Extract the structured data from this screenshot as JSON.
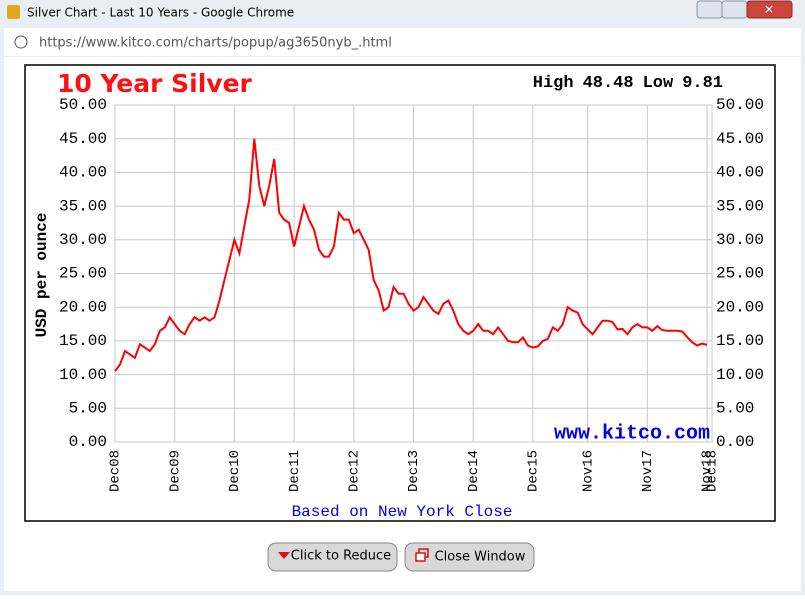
{
  "window": {
    "title": "Silver Chart - Last 10 Years - Google Chrome",
    "url": "https://www.kitco.com/charts/popup/ag3650nyb_.html"
  },
  "buttons": [
    "Click to Reduce",
    "Close Window"
  ],
  "chart_data": {
    "type": "line",
    "title": "10 Year Silver",
    "high_label": "High",
    "high": 48.48,
    "low_label": "Low",
    "low": 9.81,
    "ylabel": "USD per ounce",
    "watermark": "www.kitco.com",
    "footnote": "Based on New York Close",
    "grid": true,
    "color": "#ff0000",
    "xlim": [
      "2008-12",
      "2018-12"
    ],
    "xticks": [
      {
        "value": "2008-12",
        "label": "Dec08"
      },
      {
        "value": "2009-12",
        "label": "Dec09"
      },
      {
        "value": "2010-12",
        "label": "Dec10"
      },
      {
        "value": "2011-12",
        "label": "Dec11"
      },
      {
        "value": "2012-12",
        "label": "Dec12"
      },
      {
        "value": "2013-12",
        "label": "Dec13"
      },
      {
        "value": "2014-12",
        "label": "Dec14"
      },
      {
        "value": "2015-12",
        "label": "Dec15"
      },
      {
        "value": "2016-11",
        "label": "Nov16"
      },
      {
        "value": "2017-11",
        "label": "Nov17"
      },
      {
        "value": "2018-11",
        "label": "Nov18"
      },
      {
        "value": "2018-12",
        "label": "Dec18"
      }
    ],
    "ylim": [
      0,
      50
    ],
    "yticks": [
      {
        "value": 0,
        "label": "0.00"
      },
      {
        "value": 5,
        "label": "5.00"
      },
      {
        "value": 10,
        "label": "10.00"
      },
      {
        "value": 15,
        "label": "15.00"
      },
      {
        "value": 20,
        "label": "20.00"
      },
      {
        "value": 25,
        "label": "25.00"
      },
      {
        "value": 30,
        "label": "30.00"
      },
      {
        "value": 35,
        "label": "35.00"
      },
      {
        "value": 40,
        "label": "40.00"
      },
      {
        "value": 45,
        "label": "45.00"
      },
      {
        "value": 50,
        "label": "50.00"
      }
    ],
    "x": [
      "2008-12",
      "2009-01",
      "2009-02",
      "2009-03",
      "2009-04",
      "2009-05",
      "2009-06",
      "2009-07",
      "2009-08",
      "2009-09",
      "2009-10",
      "2009-11",
      "2009-12",
      "2010-01",
      "2010-02",
      "2010-03",
      "2010-04",
      "2010-05",
      "2010-06",
      "2010-07",
      "2010-08",
      "2010-09",
      "2010-10",
      "2010-11",
      "2010-12",
      "2011-01",
      "2011-02",
      "2011-03",
      "2011-04",
      "2011-05",
      "2011-06",
      "2011-07",
      "2011-08",
      "2011-09",
      "2011-10",
      "2011-11",
      "2011-12",
      "2012-01",
      "2012-02",
      "2012-03",
      "2012-04",
      "2012-05",
      "2012-06",
      "2012-07",
      "2012-08",
      "2012-09",
      "2012-10",
      "2012-11",
      "2012-12",
      "2013-01",
      "2013-02",
      "2013-03",
      "2013-04",
      "2013-05",
      "2013-06",
      "2013-07",
      "2013-08",
      "2013-09",
      "2013-10",
      "2013-11",
      "2013-12",
      "2014-01",
      "2014-02",
      "2014-03",
      "2014-04",
      "2014-05",
      "2014-06",
      "2014-07",
      "2014-08",
      "2014-09",
      "2014-10",
      "2014-11",
      "2014-12",
      "2015-01",
      "2015-02",
      "2015-03",
      "2015-04",
      "2015-05",
      "2015-06",
      "2015-07",
      "2015-08",
      "2015-09",
      "2015-10",
      "2015-11",
      "2015-12",
      "2016-01",
      "2016-02",
      "2016-03",
      "2016-04",
      "2016-05",
      "2016-06",
      "2016-07",
      "2016-08",
      "2016-09",
      "2016-10",
      "2016-11",
      "2016-12",
      "2017-01",
      "2017-02",
      "2017-03",
      "2017-04",
      "2017-05",
      "2017-06",
      "2017-07",
      "2017-08",
      "2017-09",
      "2017-10",
      "2017-11",
      "2017-12",
      "2018-01",
      "2018-02",
      "2018-03",
      "2018-04",
      "2018-05",
      "2018-06",
      "2018-07",
      "2018-08",
      "2018-09",
      "2018-10",
      "2018-11"
    ],
    "values": [
      10.5,
      11.5,
      13.5,
      13,
      12.5,
      14.5,
      14,
      13.5,
      14.5,
      16.5,
      17,
      18.5,
      17.5,
      16.5,
      16,
      17.5,
      18.5,
      18,
      18.5,
      18,
      18.5,
      21,
      24,
      27,
      30,
      28,
      32,
      36,
      45,
      38,
      35,
      38,
      42,
      34,
      33,
      32.5,
      29,
      32,
      35,
      33,
      31.5,
      28.5,
      27.5,
      27.5,
      29,
      34,
      33,
      33,
      31,
      31.5,
      30,
      28.5,
      24,
      22.5,
      19.5,
      20,
      23,
      22,
      22,
      20.5,
      19.5,
      20,
      21.5,
      20.5,
      19.5,
      19,
      20.5,
      21,
      19.5,
      17.5,
      16.5,
      16,
      16.5,
      17.5,
      16.5,
      16.5,
      16,
      17,
      16,
      15,
      14.8,
      14.8,
      15.5,
      14.3,
      14,
      14.2,
      15,
      15.3,
      17,
      16.5,
      17.5,
      20,
      19.5,
      19.2,
      17.5,
      16.7,
      16,
      17,
      18,
      18,
      17.8,
      16.7,
      16.8,
      16,
      17,
      17.5,
      17,
      17,
      16.5,
      17.2,
      16.6,
      16.5,
      16.5,
      16.5,
      16.4,
      15.6,
      14.8,
      14.3,
      14.6,
      14.4
    ]
  }
}
